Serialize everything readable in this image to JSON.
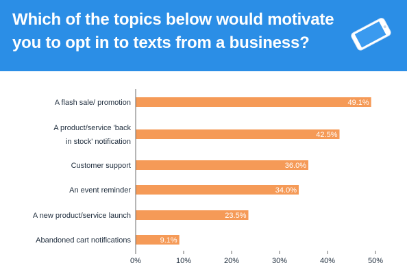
{
  "header": {
    "title": "Which of the topics below would motivate you to opt in to texts from a business?"
  },
  "colors": {
    "header_bg": "#2b8ee6",
    "bar": "#f59a57",
    "axis": "#6b6b6b",
    "text": "#1f2d3d"
  },
  "icons": {
    "phone": "smartphone-icon"
  },
  "chart_data": {
    "type": "bar",
    "orientation": "horizontal",
    "categories": [
      [
        "A flash sale/ promotion"
      ],
      [
        "A product/service 'back",
        "in stock' notification"
      ],
      [
        "Customer support"
      ],
      [
        "An event reminder"
      ],
      [
        "A new product/service launch"
      ],
      [
        "Abandoned cart notifications"
      ]
    ],
    "values": [
      49.1,
      42.5,
      36.0,
      34.0,
      23.5,
      9.1
    ],
    "value_labels": [
      "49.1%",
      "42.5%",
      "36.0%",
      "34.0%",
      "23.5%",
      "9.1%"
    ],
    "xticks": [
      "0%",
      "10%",
      "20%",
      "30%",
      "40%",
      "50%"
    ],
    "xlim": [
      0,
      50
    ],
    "grid": false,
    "legend": "none"
  }
}
